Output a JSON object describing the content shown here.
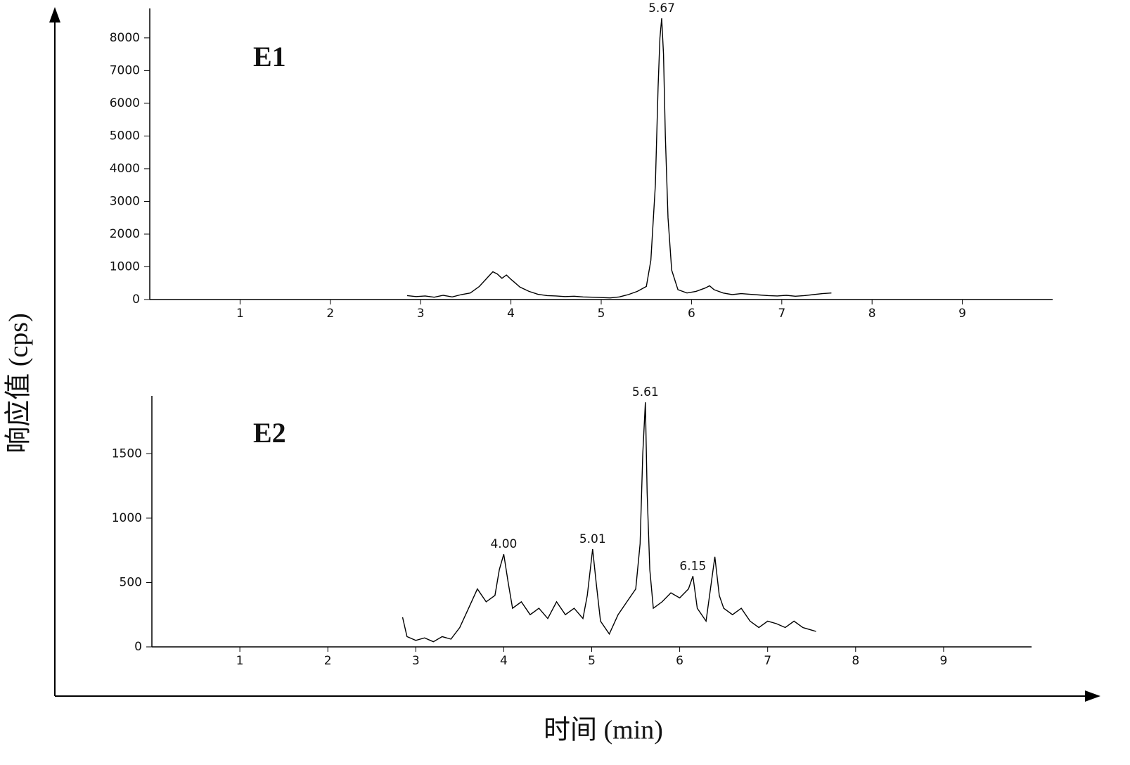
{
  "y_label": "响应值 (cps)",
  "x_label": "时间 (min)",
  "chart_data": [
    {
      "type": "line",
      "title": "E1",
      "x": [
        2.85,
        2.95,
        3.05,
        3.15,
        3.25,
        3.35,
        3.45,
        3.55,
        3.65,
        3.75,
        3.8,
        3.85,
        3.9,
        3.95,
        4.0,
        4.05,
        4.1,
        4.2,
        4.3,
        4.4,
        4.5,
        4.6,
        4.7,
        4.8,
        4.9,
        5.0,
        5.1,
        5.2,
        5.3,
        5.4,
        5.5,
        5.55,
        5.6,
        5.63,
        5.65,
        5.67,
        5.69,
        5.71,
        5.74,
        5.78,
        5.85,
        5.95,
        6.05,
        6.15,
        6.2,
        6.25,
        6.35,
        6.45,
        6.55,
        6.65,
        6.75,
        6.85,
        6.95,
        7.05,
        7.15,
        7.25,
        7.35,
        7.45,
        7.55
      ],
      "series": [
        {
          "color": "#000000",
          "values": [
            120,
            90,
            110,
            70,
            130,
            80,
            150,
            200,
            400,
            700,
            850,
            780,
            650,
            750,
            620,
            500,
            380,
            250,
            160,
            120,
            110,
            90,
            100,
            80,
            70,
            60,
            50,
            80,
            150,
            250,
            400,
            1200,
            3500,
            6500,
            8000,
            8600,
            7500,
            5000,
            2500,
            900,
            300,
            200,
            250,
            350,
            420,
            300,
            200,
            150,
            180,
            160,
            140,
            120,
            110,
            130,
            100,
            120,
            150,
            180,
            200
          ]
        }
      ],
      "annotations": [
        {
          "label": "5.67",
          "x": 5.67
        }
      ],
      "xlim": [
        0,
        10
      ],
      "ylim": [
        0,
        8900
      ],
      "xticks": [
        1,
        2,
        3,
        4,
        5,
        6,
        7,
        8,
        9
      ],
      "yticks": [
        0,
        1000,
        2000,
        3000,
        4000,
        5000,
        6000,
        7000,
        8000
      ]
    },
    {
      "type": "line",
      "title": "E2",
      "x": [
        2.85,
        2.9,
        3.0,
        3.1,
        3.2,
        3.3,
        3.4,
        3.5,
        3.6,
        3.7,
        3.8,
        3.9,
        3.95,
        4.0,
        4.05,
        4.1,
        4.2,
        4.3,
        4.4,
        4.5,
        4.6,
        4.7,
        4.8,
        4.9,
        4.95,
        5.01,
        5.05,
        5.1,
        5.2,
        5.3,
        5.4,
        5.5,
        5.55,
        5.58,
        5.61,
        5.63,
        5.66,
        5.7,
        5.8,
        5.9,
        6.0,
        6.1,
        6.15,
        6.2,
        6.3,
        6.4,
        6.45,
        6.5,
        6.6,
        6.7,
        6.8,
        6.9,
        7.0,
        7.1,
        7.2,
        7.3,
        7.4,
        7.5,
        7.55
      ],
      "series": [
        {
          "color": "#000000",
          "values": [
            230,
            80,
            50,
            70,
            40,
            80,
            60,
            150,
            300,
            450,
            350,
            400,
            600,
            720,
            500,
            300,
            350,
            250,
            300,
            220,
            350,
            250,
            300,
            220,
            400,
            760,
            500,
            200,
            100,
            250,
            350,
            450,
            800,
            1500,
            1900,
            1200,
            600,
            300,
            350,
            420,
            380,
            450,
            550,
            300,
            200,
            700,
            400,
            300,
            250,
            300,
            200,
            150,
            200,
            180,
            150,
            200,
            150,
            130,
            120
          ]
        }
      ],
      "annotations": [
        {
          "label": "4.00",
          "x": 4.0
        },
        {
          "label": "5.01",
          "x": 5.01
        },
        {
          "label": "5.61",
          "x": 5.61
        },
        {
          "label": "6.15",
          "x": 6.15
        }
      ],
      "xlim": [
        0,
        10
      ],
      "ylim": [
        0,
        1950
      ],
      "xticks": [
        1,
        2,
        3,
        4,
        5,
        6,
        7,
        8,
        9
      ],
      "yticks": [
        0,
        500,
        1000,
        1500
      ]
    }
  ]
}
